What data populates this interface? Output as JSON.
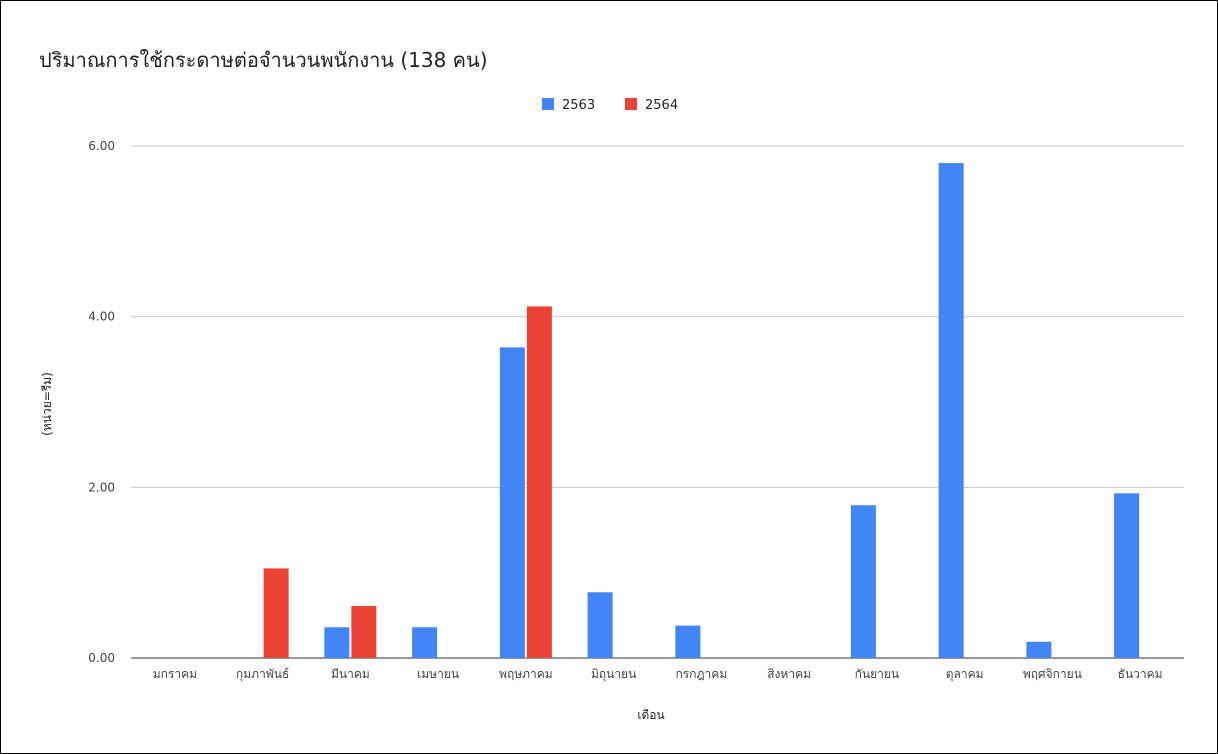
{
  "chart_data": {
    "type": "bar",
    "title": "ปริมาณการใช้กระดาษต่อจำนวนพนักงาน (138 คน)",
    "xlabel": "เดือน",
    "ylabel": "(หน่วย=รีม)",
    "ylim": [
      0,
      6
    ],
    "yticks": [
      "0.00",
      "2.00",
      "4.00",
      "6.00"
    ],
    "grid": true,
    "legend_position": "top-center",
    "categories": [
      "มกราคม",
      "กุมภาพันธ์",
      "มีนาคม",
      "เมษายน",
      "พฤษภาคม",
      "มิถุนายน",
      "กรกฎาคม",
      "สิงหาคม",
      "กันยายน",
      "ตุลาคม",
      "พฤศจิกายน",
      "ธันวาคม"
    ],
    "series": [
      {
        "name": "2563",
        "color": "#4285f4",
        "values": [
          0,
          0,
          0.36,
          0.36,
          3.64,
          0.77,
          0.38,
          0,
          1.79,
          5.8,
          0.19,
          1.93
        ]
      },
      {
        "name": "2564",
        "color": "#ea4335",
        "values": [
          0,
          1.05,
          0.61,
          0,
          4.12,
          0,
          0,
          0,
          0,
          0,
          0,
          0
        ]
      }
    ]
  }
}
